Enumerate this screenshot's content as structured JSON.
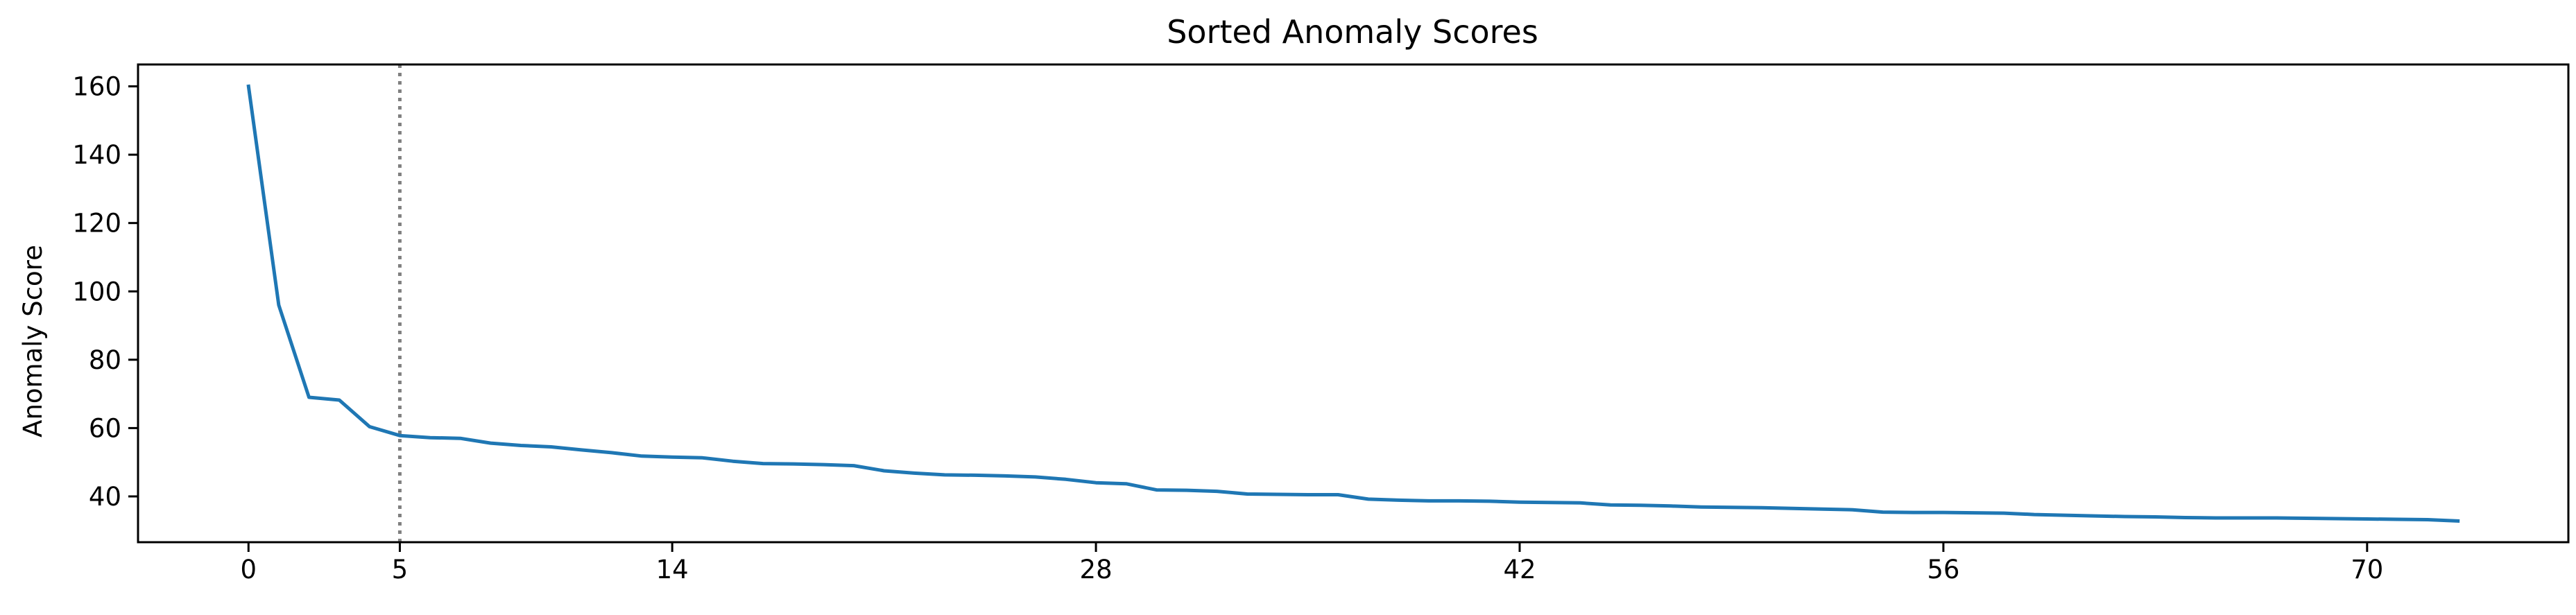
{
  "chart_data": {
    "type": "line",
    "title": "Sorted Anomaly Scores",
    "xlabel": "",
    "ylabel": "Anomaly Score",
    "xlim": [
      -3.65,
      76.65
    ],
    "ylim": [
      26.6,
      166.4
    ],
    "xticks": [
      0,
      5,
      14,
      28,
      42,
      56,
      70
    ],
    "yticks": [
      40,
      60,
      80,
      100,
      120,
      140,
      160
    ],
    "grid": false,
    "legend": "none",
    "series": [
      {
        "color": "#1f77b4",
        "x": [
          0,
          1,
          2,
          3,
          4,
          5,
          6,
          7,
          8,
          9,
          10,
          11,
          12,
          13,
          14,
          15,
          16,
          17,
          18,
          19,
          20,
          21,
          22,
          23,
          24,
          25,
          26,
          27,
          28,
          29,
          30,
          31,
          32,
          33,
          34,
          35,
          36,
          37,
          38,
          39,
          40,
          41,
          42,
          43,
          44,
          45,
          46,
          47,
          48,
          49,
          50,
          51,
          52,
          53,
          54,
          55,
          56,
          57,
          58,
          59,
          60,
          61,
          62,
          63,
          64,
          65,
          66,
          67,
          68,
          69,
          70,
          71,
          72,
          73
        ],
        "values": [
          160,
          96,
          69,
          68.2,
          60.4,
          57.8,
          57.2,
          57,
          55.6,
          54.9,
          54.5,
          53.6,
          52.8,
          51.8,
          51.5,
          51.3,
          50.3,
          49.6,
          49.5,
          49.3,
          49,
          47.5,
          46.8,
          46.3,
          46.2,
          46,
          45.7,
          45,
          44,
          43.7,
          41.9,
          41.8,
          41.5,
          40.7,
          40.6,
          40.5,
          40.5,
          39.2,
          38.9,
          38.7,
          38.7,
          38.6,
          38.3,
          38.2,
          38.1,
          37.5,
          37.4,
          37.2,
          36.9,
          36.8,
          36.7,
          36.5,
          36.3,
          36.1,
          35.4,
          35.3,
          35.3,
          35.2,
          35.1,
          34.7,
          34.5,
          34.3,
          34.1,
          34,
          33.8,
          33.7,
          33.7,
          33.7,
          33.6,
          33.5,
          33.4,
          33.3,
          33.2,
          32.8
        ]
      }
    ],
    "annotations": [
      {
        "type": "vline",
        "x": 5,
        "style": "dotted",
        "color": "#808080"
      }
    ]
  }
}
